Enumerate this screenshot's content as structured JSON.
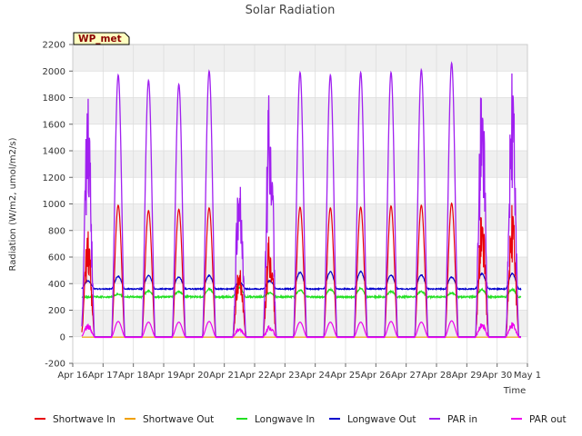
{
  "chart_data": {
    "type": "line",
    "title": "Solar Radiation",
    "xlabel": "Time",
    "ylabel": "Radiation (W/m2, umol/m2/s)",
    "site_label": "WP_met",
    "ylim": [
      -200,
      2200
    ],
    "yticks": [
      -200,
      0,
      200,
      400,
      600,
      800,
      1000,
      1200,
      1400,
      1600,
      1800,
      2000,
      2200
    ],
    "xlim": [
      16,
      31
    ],
    "xticks": [
      {
        "x": 16,
        "label": "Apr 16"
      },
      {
        "x": 17,
        "label": "Apr 17"
      },
      {
        "x": 18,
        "label": "Apr 18"
      },
      {
        "x": 19,
        "label": "Apr 19"
      },
      {
        "x": 20,
        "label": "Apr 20"
      },
      {
        "x": 21,
        "label": "Apr 21"
      },
      {
        "x": 22,
        "label": "Apr 22"
      },
      {
        "x": 23,
        "label": "Apr 23"
      },
      {
        "x": 24,
        "label": "Apr 24"
      },
      {
        "x": 25,
        "label": "Apr 25"
      },
      {
        "x": 26,
        "label": "Apr 26"
      },
      {
        "x": 27,
        "label": "Apr 27"
      },
      {
        "x": 28,
        "label": "Apr 28"
      },
      {
        "x": 29,
        "label": "Apr 29"
      },
      {
        "x": 30,
        "label": "Apr 30"
      },
      {
        "x": 31,
        "label": "May 1"
      }
    ],
    "grid": true,
    "legend_position": "bottom",
    "data_range_days": [
      16.3,
      30.8
    ],
    "day_peaks": [
      {
        "day": 16,
        "sw": 820,
        "par": 1850,
        "lwin": 300,
        "lwout": 420,
        "parout": 100,
        "cloudy": true
      },
      {
        "day": 17,
        "sw": 990,
        "par": 1970,
        "lwin": 320,
        "lwout": 455,
        "parout": 115,
        "cloudy": false
      },
      {
        "day": 18,
        "sw": 950,
        "par": 1930,
        "lwin": 345,
        "lwout": 460,
        "parout": 110,
        "cloudy": false
      },
      {
        "day": 19,
        "sw": 960,
        "par": 1900,
        "lwin": 340,
        "lwout": 450,
        "parout": 110,
        "cloudy": false
      },
      {
        "day": 20,
        "sw": 970,
        "par": 2000,
        "lwin": 360,
        "lwout": 460,
        "parout": 115,
        "cloudy": false
      },
      {
        "day": 21,
        "sw": 600,
        "par": 1350,
        "lwin": 370,
        "lwout": 410,
        "parout": 75,
        "cloudy": true
      },
      {
        "day": 22,
        "sw": 800,
        "par": 1930,
        "lwin": 330,
        "lwout": 420,
        "parout": 90,
        "cloudy": true
      },
      {
        "day": 23,
        "sw": 975,
        "par": 1990,
        "lwin": 350,
        "lwout": 485,
        "parout": 110,
        "cloudy": false
      },
      {
        "day": 24,
        "sw": 970,
        "par": 1970,
        "lwin": 355,
        "lwout": 490,
        "parout": 110,
        "cloudy": false
      },
      {
        "day": 25,
        "sw": 975,
        "par": 1990,
        "lwin": 365,
        "lwout": 490,
        "parout": 110,
        "cloudy": false
      },
      {
        "day": 26,
        "sw": 985,
        "par": 1990,
        "lwin": 340,
        "lwout": 465,
        "parout": 115,
        "cloudy": false
      },
      {
        "day": 27,
        "sw": 990,
        "par": 2010,
        "lwin": 340,
        "lwout": 465,
        "parout": 110,
        "cloudy": false
      },
      {
        "day": 28,
        "sw": 1005,
        "par": 2060,
        "lwin": 330,
        "lwout": 450,
        "parout": 120,
        "cloudy": false
      },
      {
        "day": 29,
        "sw": 1000,
        "par": 2000,
        "lwin": 355,
        "lwout": 475,
        "parout": 110,
        "cloudy": true
      }
    ],
    "night_levels": {
      "lwin": 300,
      "lwout": 360
    },
    "series": [
      {
        "name": "Shortwave In",
        "key": "sw",
        "color": "#e8000b"
      },
      {
        "name": "Shortwave Out",
        "key": "swout",
        "color": "#f0a000"
      },
      {
        "name": "Longwave In",
        "key": "lwin",
        "color": "#22e022"
      },
      {
        "name": "Longwave Out",
        "key": "lwout",
        "color": "#0000cc"
      },
      {
        "name": "PAR in",
        "key": "par",
        "color": "#a020f0"
      },
      {
        "name": "PAR out",
        "key": "parout",
        "color": "#ee00ee"
      }
    ]
  }
}
